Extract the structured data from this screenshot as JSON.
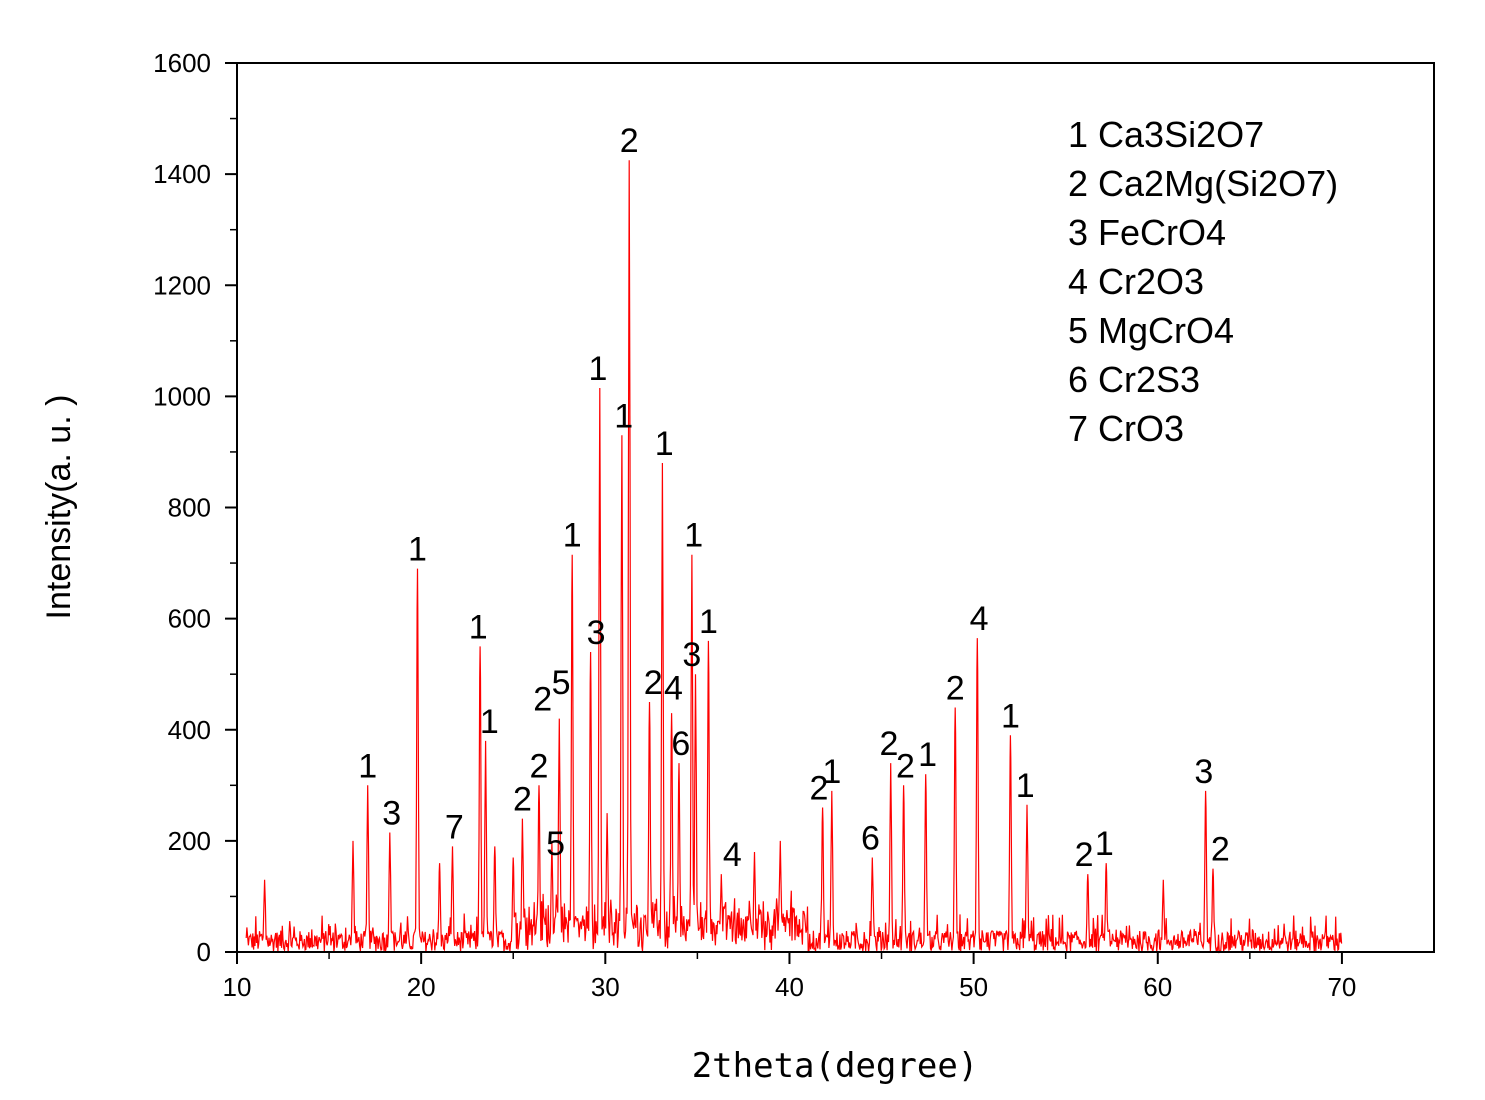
{
  "chart_data": {
    "type": "line",
    "xlabel": "2theta(degree)",
    "ylabel": "Intensity(a. u. )",
    "xlim": [
      10,
      75
    ],
    "ylim": [
      0,
      1600
    ],
    "x_ticks": [
      10,
      20,
      30,
      40,
      50,
      60,
      70
    ],
    "y_ticks": [
      0,
      200,
      400,
      600,
      800,
      1000,
      1200,
      1400,
      1600
    ],
    "grid": false,
    "line_color": "#ff0000",
    "x_range": [
      10.5,
      70
    ],
    "baseline_noise_max": 70,
    "peaks": [
      {
        "x": 11.5,
        "y": 130
      },
      {
        "x": 16.3,
        "y": 200
      },
      {
        "x": 17.1,
        "y": 300
      },
      {
        "x": 18.3,
        "y": 215
      },
      {
        "x": 19.8,
        "y": 690
      },
      {
        "x": 21.0,
        "y": 160
      },
      {
        "x": 21.7,
        "y": 190
      },
      {
        "x": 23.2,
        "y": 550
      },
      {
        "x": 23.5,
        "y": 380
      },
      {
        "x": 24.0,
        "y": 190
      },
      {
        "x": 25.0,
        "y": 170
      },
      {
        "x": 25.5,
        "y": 240
      },
      {
        "x": 26.4,
        "y": 300
      },
      {
        "x": 27.1,
        "y": 200
      },
      {
        "x": 27.5,
        "y": 420
      },
      {
        "x": 28.2,
        "y": 715
      },
      {
        "x": 29.2,
        "y": 540
      },
      {
        "x": 29.7,
        "y": 1015
      },
      {
        "x": 30.1,
        "y": 250
      },
      {
        "x": 30.9,
        "y": 930
      },
      {
        "x": 31.3,
        "y": 1425
      },
      {
        "x": 32.4,
        "y": 450
      },
      {
        "x": 33.1,
        "y": 880
      },
      {
        "x": 33.6,
        "y": 430
      },
      {
        "x": 34.0,
        "y": 340
      },
      {
        "x": 34.7,
        "y": 715
      },
      {
        "x": 34.9,
        "y": 500
      },
      {
        "x": 35.6,
        "y": 560
      },
      {
        "x": 36.3,
        "y": 140
      },
      {
        "x": 38.1,
        "y": 180
      },
      {
        "x": 39.5,
        "y": 200
      },
      {
        "x": 41.8,
        "y": 260
      },
      {
        "x": 42.3,
        "y": 290
      },
      {
        "x": 44.5,
        "y": 170
      },
      {
        "x": 45.5,
        "y": 340
      },
      {
        "x": 46.2,
        "y": 300
      },
      {
        "x": 47.4,
        "y": 320
      },
      {
        "x": 49.0,
        "y": 440
      },
      {
        "x": 50.2,
        "y": 565
      },
      {
        "x": 52.0,
        "y": 390
      },
      {
        "x": 52.9,
        "y": 265
      },
      {
        "x": 56.2,
        "y": 140
      },
      {
        "x": 57.2,
        "y": 160
      },
      {
        "x": 60.3,
        "y": 130
      },
      {
        "x": 62.6,
        "y": 290
      },
      {
        "x": 63.0,
        "y": 150
      }
    ],
    "peak_labels": [
      {
        "text": "1",
        "x": 17.1,
        "y": 300
      },
      {
        "text": "3",
        "x": 18.4,
        "y": 215
      },
      {
        "text": "1",
        "x": 19.8,
        "y": 690
      },
      {
        "text": "7",
        "x": 21.8,
        "y": 190
      },
      {
        "text": "1",
        "x": 23.1,
        "y": 550
      },
      {
        "text": "1",
        "x": 23.7,
        "y": 380
      },
      {
        "text": "2",
        "x": 25.5,
        "y": 240
      },
      {
        "text": "2",
        "x": 26.4,
        "y": 300
      },
      {
        "text": "5",
        "x": 27.3,
        "y": 160
      },
      {
        "text": "2",
        "x": 26.6,
        "y": 420
      },
      {
        "text": "5",
        "x": 27.6,
        "y": 450
      },
      {
        "text": "1",
        "x": 28.2,
        "y": 715
      },
      {
        "text": "3",
        "x": 29.5,
        "y": 540
      },
      {
        "text": "1",
        "x": 29.6,
        "y": 1015
      },
      {
        "text": "1",
        "x": 31.0,
        "y": 930
      },
      {
        "text": "2",
        "x": 31.3,
        "y": 1425
      },
      {
        "text": "1",
        "x": 33.2,
        "y": 880
      },
      {
        "text": "2",
        "x": 32.6,
        "y": 450
      },
      {
        "text": "4",
        "x": 33.7,
        "y": 440
      },
      {
        "text": "6",
        "x": 34.1,
        "y": 340
      },
      {
        "text": "1",
        "x": 34.8,
        "y": 715
      },
      {
        "text": "3",
        "x": 34.7,
        "y": 500
      },
      {
        "text": "1",
        "x": 35.6,
        "y": 560
      },
      {
        "text": "4",
        "x": 36.9,
        "y": 140
      },
      {
        "text": "2",
        "x": 41.6,
        "y": 260
      },
      {
        "text": "1",
        "x": 42.3,
        "y": 290
      },
      {
        "text": "6",
        "x": 44.4,
        "y": 170
      },
      {
        "text": "2",
        "x": 45.4,
        "y": 340
      },
      {
        "text": "2",
        "x": 46.3,
        "y": 300
      },
      {
        "text": "1",
        "x": 47.5,
        "y": 320
      },
      {
        "text": "2",
        "x": 49.0,
        "y": 440
      },
      {
        "text": "4",
        "x": 50.3,
        "y": 565
      },
      {
        "text": "1",
        "x": 52.0,
        "y": 390
      },
      {
        "text": "1",
        "x": 52.8,
        "y": 265
      },
      {
        "text": "2",
        "x": 56.0,
        "y": 140
      },
      {
        "text": "1",
        "x": 57.1,
        "y": 160
      },
      {
        "text": "3",
        "x": 62.5,
        "y": 290
      },
      {
        "text": "2",
        "x": 63.4,
        "y": 150
      }
    ],
    "legend_position": "top-right",
    "legend": [
      "1 Ca3Si2O7",
      "2 Ca2Mg(Si2O7)",
      "3 FeCrO4",
      "4 Cr2O3",
      "5 MgCrO4",
      "6 Cr2S3",
      "7 CrO3"
    ]
  }
}
